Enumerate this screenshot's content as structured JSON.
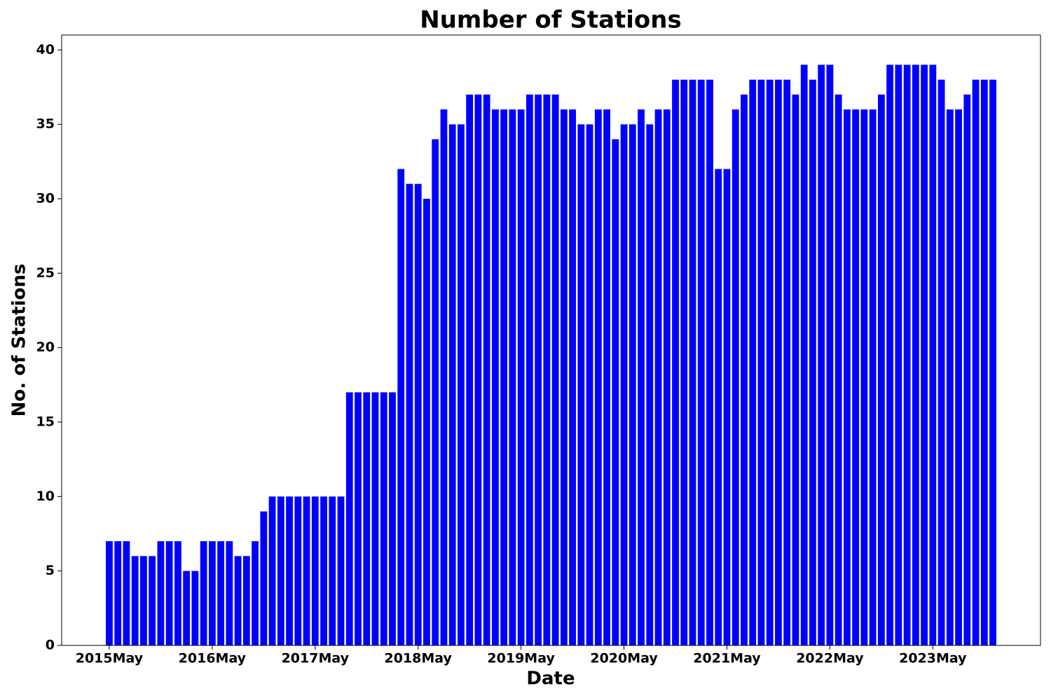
{
  "chart_data": {
    "type": "bar",
    "title": "Number of Stations",
    "xlabel": "Date",
    "ylabel": "No. of Stations",
    "color": "#0000ff",
    "categories": [
      "2015May",
      null,
      null,
      null,
      null,
      null,
      null,
      null,
      null,
      null,
      null,
      null,
      "2016May",
      null,
      null,
      null,
      null,
      null,
      null,
      null,
      null,
      null,
      null,
      null,
      "2017May",
      null,
      null,
      null,
      null,
      null,
      null,
      null,
      null,
      null,
      null,
      null,
      "2018May",
      null,
      null,
      null,
      null,
      null,
      null,
      null,
      null,
      null,
      null,
      null,
      "2019May",
      null,
      null,
      null,
      null,
      null,
      null,
      null,
      null,
      null,
      null,
      null,
      "2020May",
      null,
      null,
      null,
      null,
      null,
      null,
      null,
      null,
      null,
      null,
      null,
      "2021May",
      null,
      null,
      null,
      null,
      null,
      null,
      null,
      null,
      null,
      null,
      null,
      "2022May",
      null,
      null,
      null,
      null,
      null,
      null,
      null,
      null,
      null,
      null,
      null,
      "2023May",
      null,
      null,
      null,
      null,
      null,
      null,
      null
    ],
    "values": [
      7,
      7,
      7,
      6,
      6,
      6,
      7,
      7,
      7,
      5,
      5,
      7,
      7,
      7,
      7,
      6,
      6,
      7,
      9,
      10,
      10,
      10,
      10,
      10,
      10,
      10,
      10,
      10,
      17,
      17,
      17,
      17,
      17,
      17,
      32,
      31,
      31,
      30,
      34,
      36,
      35,
      35,
      37,
      37,
      37,
      36,
      36,
      36,
      36,
      37,
      37,
      37,
      37,
      36,
      36,
      35,
      35,
      36,
      36,
      34,
      35,
      35,
      36,
      35,
      36,
      36,
      38,
      38,
      38,
      38,
      38,
      32,
      32,
      36,
      37,
      38,
      38,
      38,
      38,
      38,
      37,
      39,
      38,
      39,
      39,
      37,
      36,
      36,
      36,
      36,
      37,
      39,
      39,
      39,
      39,
      39,
      39,
      38,
      36,
      36,
      37,
      38,
      38,
      38
    ],
    "ylim": [
      0,
      41
    ],
    "yticks": [
      0,
      5,
      10,
      15,
      20,
      25,
      30,
      35,
      40
    ],
    "grid": false
  }
}
